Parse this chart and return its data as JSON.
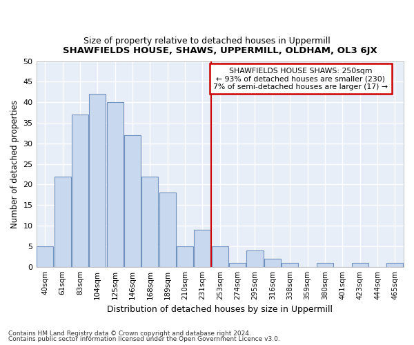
{
  "title": "SHAWFIELDS HOUSE, SHAWS, UPPERMILL, OLDHAM, OL3 6JX",
  "subtitle": "Size of property relative to detached houses in Uppermill",
  "xlabel": "Distribution of detached houses by size in Uppermill",
  "ylabel": "Number of detached properties",
  "bar_labels": [
    "40sqm",
    "61sqm",
    "83sqm",
    "104sqm",
    "125sqm",
    "146sqm",
    "168sqm",
    "189sqm",
    "210sqm",
    "231sqm",
    "253sqm",
    "274sqm",
    "295sqm",
    "316sqm",
    "338sqm",
    "359sqm",
    "380sqm",
    "401sqm",
    "423sqm",
    "444sqm",
    "465sqm"
  ],
  "bar_values": [
    5,
    22,
    37,
    42,
    40,
    32,
    22,
    18,
    5,
    9,
    5,
    1,
    4,
    2,
    1,
    0,
    1,
    0,
    1,
    0,
    1
  ],
  "bar_color": "#c8d8ee",
  "bar_edge_color": "#7090c0",
  "vline_index": 10,
  "annotation_line1": "SHAWFIELDS HOUSE SHAWS: 250sqm",
  "annotation_line2": "← 93% of detached houses are smaller (230)",
  "annotation_line3": "7% of semi-detached houses are larger (17) →",
  "annotation_box_color": "#ffffff",
  "annotation_box_edge": "#cc0000",
  "vline_color": "#cc0000",
  "ylim": [
    0,
    50
  ],
  "yticks": [
    0,
    5,
    10,
    15,
    20,
    25,
    30,
    35,
    40,
    45,
    50
  ],
  "footnote1": "Contains HM Land Registry data © Crown copyright and database right 2024.",
  "footnote2": "Contains public sector information licensed under the Open Government Licence v3.0.",
  "bg_color": "#ffffff",
  "plot_bg_color": "#e8eef8",
  "grid_color": "#ffffff"
}
